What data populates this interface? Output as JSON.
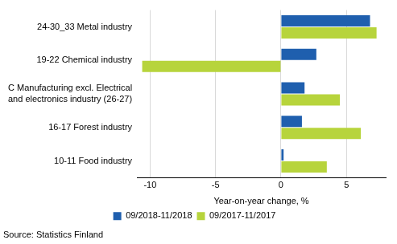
{
  "chart_data": {
    "type": "bar",
    "orientation": "horizontal",
    "x_label": "Year-on-year change, %",
    "source": "Source: Statistics Finland",
    "categories": [
      "24-30_33 Metal industry",
      "19-22 Chemical industry",
      "C Manufacturing excl. Electrical and electronics industry (26-27)",
      "16-17 Forest industry",
      "10-11 Food industry"
    ],
    "series": [
      {
        "name": "09/2018-11/2018",
        "color": "#1f5fae",
        "values": [
          6.8,
          2.7,
          1.8,
          1.6,
          0.2
        ]
      },
      {
        "name": "09/2017-11/2017",
        "color": "#b7d43c",
        "values": [
          7.3,
          -10.6,
          4.5,
          6.1,
          3.5
        ]
      }
    ],
    "xlim": [
      -11,
      8
    ],
    "xticks": [
      -10,
      -5,
      0,
      5
    ],
    "grid": true,
    "legend": "bottom"
  }
}
